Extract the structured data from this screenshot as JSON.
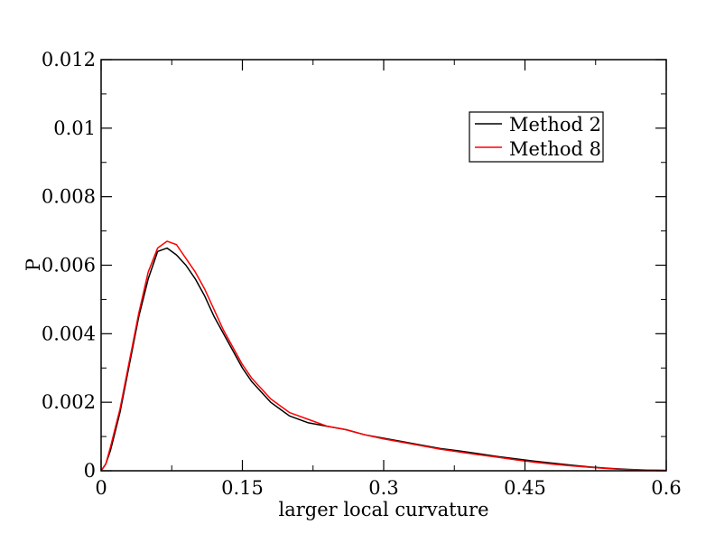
{
  "chart_data": {
    "type": "line",
    "title": "",
    "xlabel": "larger local curvature",
    "ylabel": "P",
    "xlim": [
      0,
      0.6
    ],
    "ylim": [
      0,
      0.012
    ],
    "x_ticks": [
      0,
      0.15,
      0.3,
      0.45,
      0.6
    ],
    "x_tick_labels": [
      "0",
      "0.15",
      "0.3",
      "0.45",
      "0.6"
    ],
    "y_ticks": [
      0,
      0.002,
      0.004,
      0.006,
      0.008,
      0.01,
      0.012
    ],
    "y_tick_labels": [
      "0",
      "0.002",
      "0.004",
      "0.006",
      "0.008",
      "0.01",
      "0.012"
    ],
    "grid": false,
    "legend_position": "top-right",
    "series": [
      {
        "name": "Method 2",
        "color": "#000000",
        "x": [
          0,
          0.005,
          0.01,
          0.02,
          0.03,
          0.04,
          0.05,
          0.06,
          0.07,
          0.08,
          0.09,
          0.1,
          0.11,
          0.12,
          0.13,
          0.14,
          0.15,
          0.16,
          0.17,
          0.18,
          0.19,
          0.2,
          0.22,
          0.24,
          0.26,
          0.28,
          0.3,
          0.32,
          0.34,
          0.36,
          0.38,
          0.4,
          0.42,
          0.44,
          0.46,
          0.48,
          0.5,
          0.52,
          0.54,
          0.56,
          0.58,
          0.6
        ],
        "y": [
          0,
          0.0002,
          0.0006,
          0.0017,
          0.0031,
          0.0045,
          0.0056,
          0.0064,
          0.0065,
          0.0063,
          0.006,
          0.0056,
          0.0051,
          0.0045,
          0.004,
          0.0035,
          0.003,
          0.0026,
          0.0023,
          0.002,
          0.0018,
          0.0016,
          0.0014,
          0.0013,
          0.0012,
          0.00105,
          0.00095,
          0.00085,
          0.00075,
          0.00065,
          0.00058,
          0.0005,
          0.00042,
          0.00035,
          0.00028,
          0.00022,
          0.00016,
          0.00011,
          7e-05,
          4e-05,
          2e-05,
          1e-05
        ]
      },
      {
        "name": "Method 8",
        "color": "#ff0000",
        "x": [
          0,
          0.005,
          0.01,
          0.02,
          0.03,
          0.04,
          0.05,
          0.06,
          0.07,
          0.08,
          0.09,
          0.1,
          0.11,
          0.12,
          0.13,
          0.14,
          0.15,
          0.16,
          0.17,
          0.18,
          0.19,
          0.2,
          0.22,
          0.24,
          0.26,
          0.28,
          0.3,
          0.32,
          0.34,
          0.36,
          0.38,
          0.4,
          0.42,
          0.44,
          0.46,
          0.48,
          0.5,
          0.52,
          0.54,
          0.56,
          0.58,
          0.6
        ],
        "y": [
          0,
          0.0002,
          0.0007,
          0.0018,
          0.0032,
          0.0046,
          0.0058,
          0.0065,
          0.0067,
          0.0066,
          0.0062,
          0.0058,
          0.0053,
          0.0047,
          0.0041,
          0.0036,
          0.0031,
          0.0027,
          0.0024,
          0.0021,
          0.0019,
          0.0017,
          0.0015,
          0.0013,
          0.0012,
          0.00105,
          0.00093,
          0.00083,
          0.00073,
          0.00063,
          0.00055,
          0.00047,
          0.0004,
          0.00032,
          0.00025,
          0.00019,
          0.00014,
          0.0001,
          6e-05,
          3e-05,
          1.5e-05,
          1e-05
        ]
      }
    ]
  }
}
